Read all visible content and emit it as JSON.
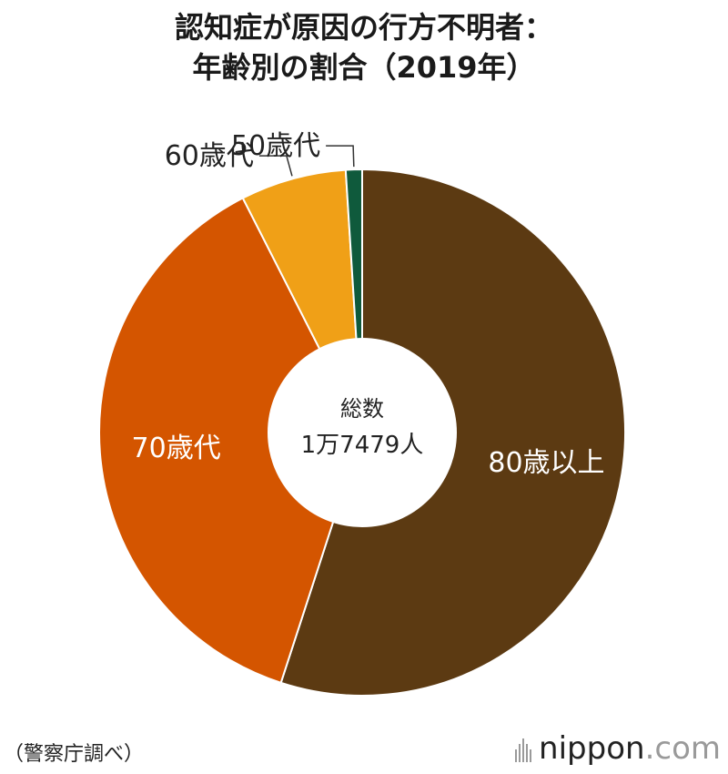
{
  "title": {
    "line1": "認知症が原因の行方不明者：",
    "line2": "年齢別の割合（2019年）"
  },
  "center_label": {
    "line1": "総数",
    "line2": "1万7479人"
  },
  "source": "（警察庁調べ）",
  "brand": {
    "name": "nippon",
    "dot": ".",
    "tld": "com"
  },
  "chart_data": {
    "type": "pie",
    "style": "donut",
    "title": "認知症が原因の行方不明者：年齢別の割合（2019年）",
    "total_label": "総数 1万7479人",
    "slices": [
      {
        "label": "80歳以上",
        "value": 55.0,
        "color": "#5c3a12",
        "label_inside": true
      },
      {
        "label": "70歳代",
        "value": 37.5,
        "color": "#d45500",
        "label_inside": true
      },
      {
        "label": "60歳代",
        "value": 6.5,
        "color": "#f0a017",
        "label_inside": false
      },
      {
        "label": "50歳代",
        "value": 1.0,
        "color": "#0f5a3c",
        "label_inside": false
      }
    ],
    "legend": "none"
  }
}
